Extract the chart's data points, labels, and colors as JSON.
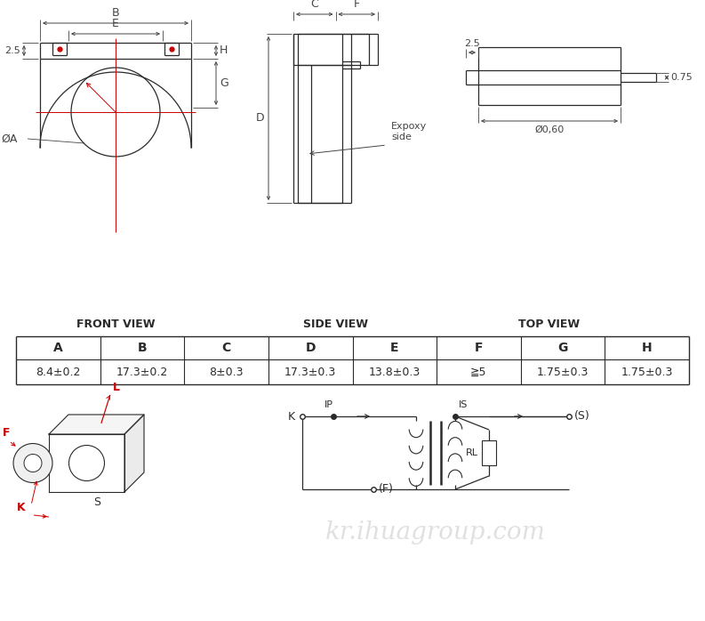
{
  "bg_color": "#ffffff",
  "line_color": "#2a2a2a",
  "red_color": "#cc0000",
  "dim_color": "#444444",
  "table_headers": [
    "A",
    "B",
    "C",
    "D",
    "E",
    "F",
    "G",
    "H"
  ],
  "table_values": [
    "8.4±0.2",
    "17.3±0.2",
    "8±0.3",
    "17.3±0.3",
    "13.8±0.3",
    "≧5",
    "1.75±0.3",
    "1.75±0.3"
  ],
  "front_view_label": "FRONT VIEW",
  "side_view_label": "SIDE VIEW",
  "top_view_label": "TOP VIEW",
  "watermark": "kr.ihuagroup.com",
  "dim_25_front": "2.5",
  "dim_075": "0.75",
  "dim_25_top": "2.5",
  "dim_060": "Ø0,60",
  "label_phiA": "ØA",
  "label_expoxy": "Expoxy\nside"
}
